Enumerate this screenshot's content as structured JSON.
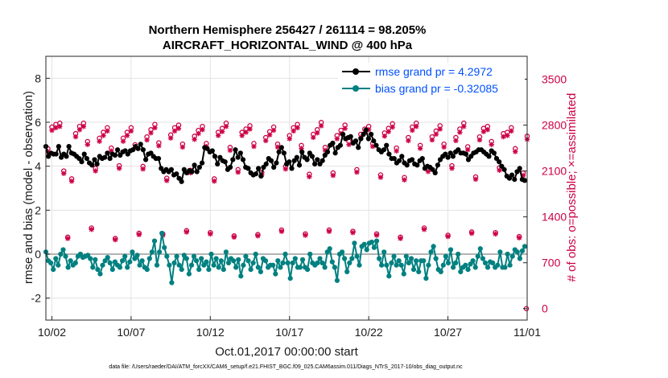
{
  "chart_data": {
    "type": "line",
    "title": "Northern Hemisphere 256427 / 261114 = 98.205%",
    "subtitle": "AIRCRAFT_HORIZONTAL_WIND @ 400 hPa",
    "xlabel": "Oct.01,2017 00:00:00 start",
    "ylabel": "rmse and bias (model - observation)",
    "y2label": "# of obs: o=possible; ×=assimilated",
    "footnote": "data file: /Users/raeder/DAI/ATM_forcXX/CAM6_setup/f.e21.FHIST_BGC.f09_025.CAM6assim.011/Diags_NTrS_2017-10/obs_diag_output.nc",
    "xlim": [
      1.62,
      32.0
    ],
    "ylim": [
      -3,
      9
    ],
    "y2lim": [
      -175,
      3850
    ],
    "xticks": [
      2,
      7,
      12,
      17,
      22,
      27,
      32
    ],
    "xticklabels": [
      "10/02",
      "10/07",
      "10/12",
      "10/17",
      "10/22",
      "10/27",
      "11/01"
    ],
    "yticks": [
      -2,
      0,
      2,
      4,
      6,
      8
    ],
    "y2ticks": [
      0,
      700,
      1400,
      2100,
      2800,
      3500
    ],
    "grid": true,
    "legend_position": "top-right",
    "series": [
      {
        "name": "rmse grand pr = 4.2972",
        "axis": "left",
        "color": "#000000",
        "marker": "circle",
        "values": [
          4.9,
          4.45,
          4.6,
          4.55,
          4.55,
          4.9,
          4.4,
          4.55,
          4.45,
          4.9,
          4.6,
          4.55,
          4.45,
          4.35,
          4.2,
          4.55,
          4.35,
          4.15,
          4.05,
          4.3,
          4.1,
          4.45,
          4.35,
          4.4,
          4.6,
          4.35,
          4.55,
          4.5,
          4.75,
          4.5,
          4.65,
          4.7,
          4.55,
          4.7,
          4.75,
          4.9,
          4.8,
          5.0,
          4.75,
          4.3,
          4.55,
          4.6,
          4.45,
          4.35,
          4.35,
          3.9,
          3.75,
          3.85,
          3.75,
          3.85,
          3.6,
          3.65,
          3.45,
          3.3,
          3.85,
          3.7,
          3.8,
          3.75,
          4.05,
          3.75,
          3.95,
          4.15,
          4.85,
          4.8,
          4.65,
          4.7,
          4.45,
          4.1,
          4.4,
          4.25,
          4.2,
          3.85,
          3.95,
          4.3,
          4.75,
          4.4,
          4.6,
          4.3,
          3.95,
          3.9,
          3.7,
          3.6,
          3.65,
          3.9,
          3.55,
          3.95,
          4.1,
          4.35,
          4.25,
          3.95,
          4.15,
          4.65,
          4.85,
          4.6,
          4.1,
          4.2,
          3.9,
          4.25,
          4.4,
          4.05,
          4.65,
          4.4,
          4.3,
          4.6,
          4.45,
          4.1,
          4.3,
          4.1,
          4.25,
          4.5,
          4.65,
          4.95,
          5.05,
          4.6,
          4.85,
          4.95,
          5.45,
          5.25,
          5.3,
          5.35,
          5.05,
          5.15,
          4.85,
          5.25,
          5.45,
          5.65,
          5.25,
          5.45,
          5.15,
          4.95,
          4.75,
          4.65,
          4.75,
          4.95,
          4.55,
          4.35,
          4.35,
          4.15,
          4.25,
          4.45,
          4.15,
          4.05,
          4.25,
          4.3,
          4.1,
          4.05,
          4.25,
          4.35,
          3.9,
          4.0,
          3.95,
          3.85,
          3.7,
          4.05,
          4.3,
          4.45,
          4.55,
          4.4,
          4.6,
          4.45,
          4.65,
          4.75,
          4.6,
          4.6,
          4.55,
          4.3,
          4.45,
          4.6,
          4.65,
          4.75,
          4.75,
          4.65,
          4.55,
          4.45,
          4.7,
          4.6,
          4.35,
          4.2,
          4.0,
          3.85,
          3.55,
          3.45,
          3.6,
          3.4,
          3.75,
          3.9,
          3.4,
          3.35
        ]
      },
      {
        "name": "bias grand pr = -0.32085",
        "axis": "left",
        "color": "#008080",
        "marker": "circle",
        "values": [
          0.1,
          -0.3,
          -0.4,
          -0.7,
          -0.2,
          -0.5,
          0.0,
          0.2,
          -0.1,
          -0.6,
          -0.3,
          -0.5,
          -0.4,
          -0.1,
          0.0,
          -0.15,
          -0.1,
          -0.05,
          -0.2,
          -0.6,
          -0.25,
          -0.7,
          -0.9,
          -0.5,
          -0.3,
          -0.15,
          -0.4,
          -0.7,
          -0.35,
          -0.5,
          -0.6,
          -0.3,
          -0.1,
          -0.6,
          -0.35,
          0.1,
          -0.2,
          -0.05,
          -0.5,
          -0.3,
          -0.6,
          -0.7,
          -0.2,
          0.1,
          0.6,
          -0.5,
          0.1,
          0.95,
          0.3,
          -0.1,
          -0.5,
          -1.3,
          -0.4,
          -0.1,
          -0.5,
          -0.7,
          -0.05,
          -0.2,
          -0.9,
          -0.5,
          -0.1,
          -0.3,
          -0.7,
          -0.2,
          -0.5,
          -0.35,
          -0.7,
          0.0,
          -0.5,
          -0.2,
          -0.6,
          -0.3,
          -0.7,
          0.1,
          -0.4,
          -0.2,
          -0.3,
          -0.6,
          -0.25,
          -1.0,
          -0.5,
          -0.1,
          -0.3,
          -0.7,
          -0.4,
          0.0,
          -0.6,
          -0.8,
          -0.2,
          -0.3,
          -0.6,
          -0.5,
          -0.5,
          -0.9,
          -0.3,
          -0.6,
          -0.4,
          0.0,
          -0.4,
          -1.1,
          -0.4,
          -0.2,
          -0.6,
          -0.6,
          -0.25,
          -0.6,
          -0.7,
          0.0,
          -0.4,
          -0.5,
          -0.4,
          -0.2,
          -0.4,
          -0.6,
          0.1,
          0.25,
          -0.35,
          -0.6,
          -1.2,
          0.0,
          0.1,
          -0.2,
          -0.8,
          -0.4,
          -0.2,
          0.5,
          -0.1,
          -0.5,
          0.35,
          0.45,
          0.2,
          0.5,
          0.55,
          0.3,
          0.6,
          -0.2,
          -0.5,
          0.1,
          -0.5,
          -1.0,
          -0.4,
          -0.1,
          -0.5,
          -0.3,
          -0.5,
          -0.9,
          -0.1,
          -0.4,
          -0.2,
          -0.7,
          -0.3,
          -0.8,
          -0.3,
          -0.3,
          -1.1,
          -0.5,
          0.1,
          0.35,
          -0.2,
          -0.7,
          -0.8,
          -0.5,
          -0.1,
          -0.4,
          0.2,
          -0.6,
          -0.4,
          0.0,
          -0.8,
          -0.6,
          -0.5,
          -0.7,
          -0.45,
          -0.3,
          -0.6,
          -0.1,
          0.25,
          -0.2,
          -0.4,
          -0.6,
          -0.35,
          -0.4,
          -0.6,
          -0.5,
          0.1,
          -0.6,
          -0.6,
          0.0,
          -0.5,
          -0.1,
          0.2,
          0.1,
          -0.2,
          0.15,
          0.35
        ]
      }
    ],
    "obs_pattern": {
      "axis": "right",
      "description": "number of observations possible (o) and assimilated (x), 4 analysis times per day",
      "possible": [
        2440,
        2770,
        2810,
        2830,
        2100,
        1090,
        1980,
        2670,
        2780,
        2830,
        2550,
        1230,
        2140,
        2600,
        2690,
        2760,
        2450,
        1070,
        2180,
        2600,
        2690,
        2760,
        2500,
        1150,
        2170,
        2620,
        2730,
        2810,
        2530,
        1140,
        1990,
        2650,
        2760,
        2800,
        2510,
        1190,
        2110,
        2630,
        2720,
        2780,
        2520,
        1160,
        1980,
        2690,
        2750,
        2830,
        2460,
        1110,
        2120,
        2690,
        2740,
        2790,
        2520,
        1130,
        2080,
        2610,
        2700,
        2770,
        2510,
        1200,
        2170,
        2640,
        2760,
        2810,
        2490,
        1140,
        2050,
        2660,
        2730,
        2840,
        2460,
        1200,
        2070,
        2640,
        2720,
        2800,
        2550,
        1180,
        2120,
        2660,
        2740,
        2780,
        2520,
        1140,
        2040,
        2680,
        2750,
        2820,
        2450,
        1090,
        2000,
        2610,
        2770,
        2830,
        2490,
        1230,
        2130,
        2620,
        2710,
        2790,
        2510,
        1120,
        2180,
        2610,
        2740,
        2830,
        2470,
        1170,
        2010,
        2620,
        2750,
        2780,
        2550,
        1160,
        2150,
        2670,
        2690,
        2760,
        2440,
        1100,
        2070,
        2630,
        2700,
        2770,
        2500,
        1190
      ],
      "assimilated_fraction": 0.982
    }
  }
}
